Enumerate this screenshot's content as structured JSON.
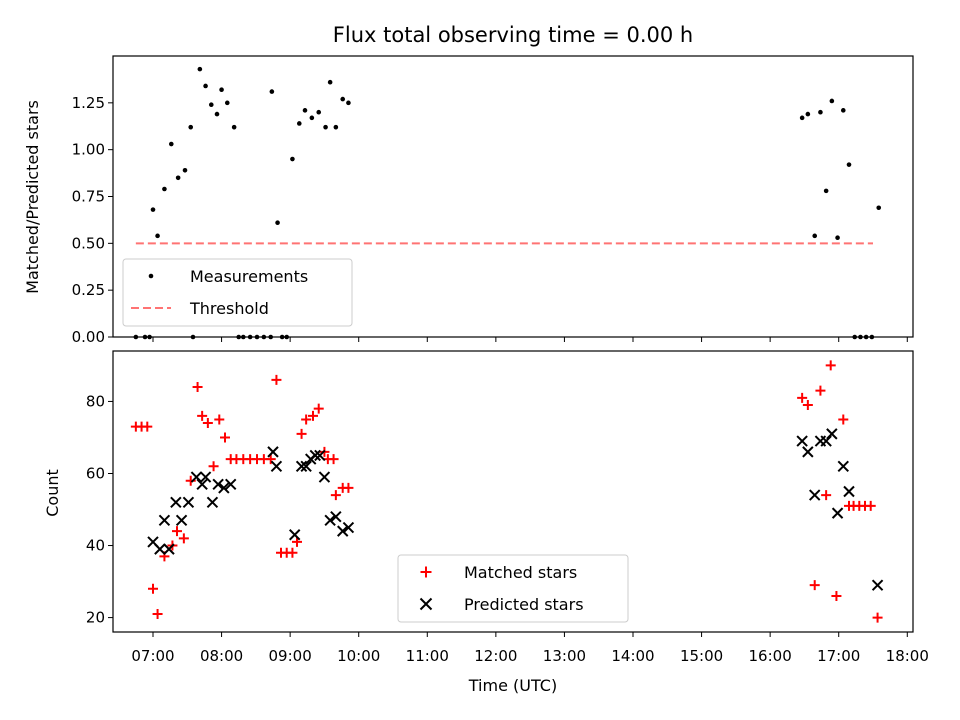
{
  "chart_data": [
    {
      "type": "scatter",
      "title": "Flux total observing time = 0.00 h",
      "xlabel": "",
      "ylabel": "Matched/Predicted stars",
      "xlim": [
        "06:25",
        "18:05"
      ],
      "ylim": [
        0,
        1.5
      ],
      "xticks": [
        "07:00",
        "08:00",
        "09:00",
        "10:00",
        "11:00",
        "12:00",
        "13:00",
        "14:00",
        "15:00",
        "16:00",
        "17:00",
        "18:00"
      ],
      "yticks": [
        "0.00",
        "0.25",
        "0.50",
        "0.75",
        "1.00",
        "1.25"
      ],
      "legend_position": "lower left",
      "series": [
        {
          "name": "Measurements",
          "style": "dot",
          "color": "#000000",
          "points": [
            [
              "06:45",
              0.0
            ],
            [
              "06:53",
              0.0
            ],
            [
              "06:57",
              0.0
            ],
            [
              "07:00",
              0.68
            ],
            [
              "07:04",
              0.54
            ],
            [
              "07:10",
              0.79
            ],
            [
              "07:16",
              1.03
            ],
            [
              "07:22",
              0.85
            ],
            [
              "07:28",
              0.89
            ],
            [
              "07:33",
              1.12
            ],
            [
              "07:35",
              0.0
            ],
            [
              "07:41",
              1.43
            ],
            [
              "07:46",
              1.34
            ],
            [
              "07:51",
              1.24
            ],
            [
              "07:56",
              1.19
            ],
            [
              "08:00",
              1.32
            ],
            [
              "08:05",
              1.25
            ],
            [
              "08:11",
              1.12
            ],
            [
              "08:15",
              0.0
            ],
            [
              "08:19",
              0.0
            ],
            [
              "08:25",
              0.0
            ],
            [
              "08:31",
              0.0
            ],
            [
              "08:37",
              0.0
            ],
            [
              "08:43",
              0.0
            ],
            [
              "08:44",
              1.31
            ],
            [
              "08:49",
              0.61
            ],
            [
              "08:53",
              0.0
            ],
            [
              "08:57",
              0.0
            ],
            [
              "09:02",
              0.95
            ],
            [
              "09:08",
              1.14
            ],
            [
              "09:13",
              1.21
            ],
            [
              "09:19",
              1.17
            ],
            [
              "09:25",
              1.2
            ],
            [
              "09:31",
              1.12
            ],
            [
              "09:35",
              1.36
            ],
            [
              "09:40",
              1.12
            ],
            [
              "09:46",
              1.27
            ],
            [
              "09:51",
              1.25
            ],
            [
              "16:28",
              1.17
            ],
            [
              "16:33",
              1.19
            ],
            [
              "16:39",
              0.54
            ],
            [
              "16:44",
              1.2
            ],
            [
              "16:49",
              0.78
            ],
            [
              "16:54",
              1.26
            ],
            [
              "16:59",
              0.53
            ],
            [
              "17:04",
              1.21
            ],
            [
              "17:09",
              0.92
            ],
            [
              "17:14",
              0.0
            ],
            [
              "17:19",
              0.0
            ],
            [
              "17:24",
              0.0
            ],
            [
              "17:29",
              0.0
            ],
            [
              "17:35",
              0.69
            ]
          ]
        },
        {
          "name": "Threshold",
          "style": "dashed-line",
          "color": "#ff7373",
          "points": [
            [
              "06:45",
              0.5
            ],
            [
              "17:30",
              0.5
            ]
          ]
        }
      ]
    },
    {
      "type": "scatter",
      "title": "",
      "xlabel": "Time (UTC)",
      "ylabel": "Count",
      "xlim": [
        "06:25",
        "18:05"
      ],
      "ylim": [
        16,
        94
      ],
      "xticks": [
        "07:00",
        "08:00",
        "09:00",
        "10:00",
        "11:00",
        "12:00",
        "13:00",
        "14:00",
        "15:00",
        "16:00",
        "17:00",
        "18:00"
      ],
      "yticks": [
        "20",
        "40",
        "60",
        "80"
      ],
      "legend_position": "lower center",
      "series": [
        {
          "name": "Matched stars",
          "style": "plus",
          "color": "#ff0000",
          "points": [
            [
              "06:45",
              73
            ],
            [
              "06:50",
              73
            ],
            [
              "06:55",
              73
            ],
            [
              "07:00",
              28
            ],
            [
              "07:04",
              21
            ],
            [
              "07:10",
              37
            ],
            [
              "07:17",
              40
            ],
            [
              "07:21",
              44
            ],
            [
              "07:27",
              42
            ],
            [
              "07:33",
              58
            ],
            [
              "07:39",
              84
            ],
            [
              "07:43",
              76
            ],
            [
              "07:48",
              74
            ],
            [
              "07:53",
              62
            ],
            [
              "07:58",
              75
            ],
            [
              "08:03",
              70
            ],
            [
              "08:08",
              64
            ],
            [
              "08:13",
              64
            ],
            [
              "08:19",
              64
            ],
            [
              "08:25",
              64
            ],
            [
              "08:31",
              64
            ],
            [
              "08:37",
              64
            ],
            [
              "08:43",
              64
            ],
            [
              "08:48",
              86
            ],
            [
              "08:52",
              38
            ],
            [
              "08:57",
              38
            ],
            [
              "09:02",
              38
            ],
            [
              "09:06",
              41
            ],
            [
              "09:10",
              71
            ],
            [
              "09:14",
              75
            ],
            [
              "09:20",
              76
            ],
            [
              "09:25",
              78
            ],
            [
              "09:30",
              66
            ],
            [
              "09:33",
              64
            ],
            [
              "09:38",
              64
            ],
            [
              "09:40",
              54
            ],
            [
              "09:46",
              56
            ],
            [
              "09:51",
              56
            ],
            [
              "16:28",
              81
            ],
            [
              "16:33",
              79
            ],
            [
              "16:39",
              29
            ],
            [
              "16:44",
              83
            ],
            [
              "16:49",
              54
            ],
            [
              "16:53",
              90
            ],
            [
              "16:58",
              26
            ],
            [
              "17:04",
              75
            ],
            [
              "17:09",
              51
            ],
            [
              "17:13",
              51
            ],
            [
              "17:18",
              51
            ],
            [
              "17:23",
              51
            ],
            [
              "17:28",
              51
            ],
            [
              "17:34",
              20
            ]
          ]
        },
        {
          "name": "Predicted stars",
          "style": "x",
          "color": "#000000",
          "points": [
            [
              "07:00",
              41
            ],
            [
              "07:06",
              39
            ],
            [
              "07:10",
              47
            ],
            [
              "07:14",
              39
            ],
            [
              "07:20",
              52
            ],
            [
              "07:25",
              47
            ],
            [
              "07:31",
              52
            ],
            [
              "07:38",
              59
            ],
            [
              "07:43",
              57
            ],
            [
              "07:46",
              59
            ],
            [
              "07:52",
              52
            ],
            [
              "07:57",
              57
            ],
            [
              "08:02",
              56
            ],
            [
              "08:08",
              57
            ],
            [
              "08:45",
              66
            ],
            [
              "08:48",
              62
            ],
            [
              "09:04",
              43
            ],
            [
              "09:10",
              62
            ],
            [
              "09:14",
              62
            ],
            [
              "09:18",
              64
            ],
            [
              "09:22",
              65
            ],
            [
              "09:26",
              65
            ],
            [
              "09:30",
              59
            ],
            [
              "09:35",
              47
            ],
            [
              "09:40",
              48
            ],
            [
              "09:46",
              44
            ],
            [
              "09:51",
              45
            ],
            [
              "16:28",
              69
            ],
            [
              "16:33",
              66
            ],
            [
              "16:39",
              54
            ],
            [
              "16:44",
              69
            ],
            [
              "16:49",
              69
            ],
            [
              "16:54",
              71
            ],
            [
              "16:59",
              49
            ],
            [
              "17:04",
              62
            ],
            [
              "17:09",
              55
            ],
            [
              "17:34",
              29
            ]
          ]
        }
      ]
    }
  ]
}
